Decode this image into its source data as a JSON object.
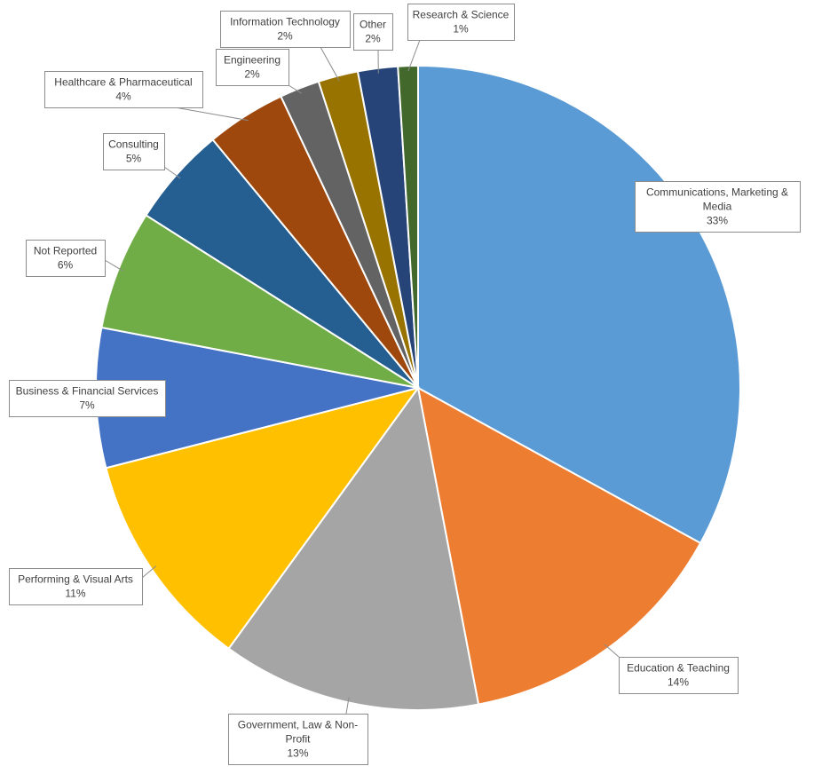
{
  "chart_data": {
    "type": "pie",
    "title": "",
    "slices": [
      {
        "name": "Communications, Marketing & Media",
        "label_lines": [
          "Communications, Marketing &",
          "Media"
        ],
        "value": 33,
        "pct_label": "33%",
        "color": "#5B9BD5"
      },
      {
        "name": "Education & Teaching",
        "label_lines": [
          "Education & Teaching"
        ],
        "value": 14,
        "pct_label": "14%",
        "color": "#ED7D31"
      },
      {
        "name": "Government, Law & Non-Profit",
        "label_lines": [
          "Government, Law & Non-",
          "Profit"
        ],
        "value": 13,
        "pct_label": "13%",
        "color": "#A5A5A5"
      },
      {
        "name": "Performing & Visual Arts",
        "label_lines": [
          "Performing & Visual Arts"
        ],
        "value": 11,
        "pct_label": "11%",
        "color": "#FFC000"
      },
      {
        "name": "Business & Financial Services",
        "label_lines": [
          "Business & Financial Services"
        ],
        "value": 7,
        "pct_label": "7%",
        "color": "#4472C4"
      },
      {
        "name": "Not Reported",
        "label_lines": [
          "Not Reported"
        ],
        "value": 6,
        "pct_label": "6%",
        "color": "#70AD47"
      },
      {
        "name": "Consulting",
        "label_lines": [
          "Consulting"
        ],
        "value": 5,
        "pct_label": "5%",
        "color": "#255E91"
      },
      {
        "name": "Healthcare & Pharmaceutical",
        "label_lines": [
          "Healthcare & Pharmaceutical"
        ],
        "value": 4,
        "pct_label": "4%",
        "color": "#9E480E"
      },
      {
        "name": "Engineering",
        "label_lines": [
          "Engineering"
        ],
        "value": 2,
        "pct_label": "2%",
        "color": "#636363"
      },
      {
        "name": "Information Technology",
        "label_lines": [
          "Information Technology"
        ],
        "value": 2,
        "pct_label": "2%",
        "color": "#997300"
      },
      {
        "name": "Other",
        "label_lines": [
          "Other"
        ],
        "value": 2,
        "pct_label": "2%",
        "color": "#264478"
      },
      {
        "name": "Research & Science",
        "label_lines": [
          "Research & Science"
        ],
        "value": 1,
        "pct_label": "1%",
        "color": "#43682B"
      }
    ]
  }
}
